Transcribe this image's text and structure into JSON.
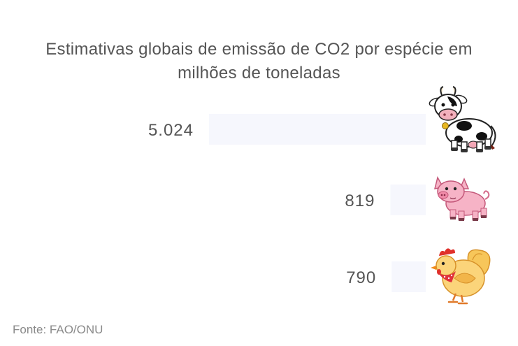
{
  "title_lines": [
    "Estimativas globais de emissão de CO2 por espécie em",
    "milhões de toneladas"
  ],
  "source": "Fonte: FAO/ONU",
  "colors": {
    "bar": "#f6f7fd",
    "text": "#555555",
    "source": "#8a8a8a"
  },
  "chart_data": {
    "type": "bar",
    "orientation": "horizontal",
    "title": "Estimativas globais de emissão de CO2 por espécie em milhões de toneladas",
    "categories": [
      "cow-icon",
      "pig-icon",
      "chicken-icon"
    ],
    "values": [
      5024,
      819,
      790
    ],
    "value_labels": [
      "5.024",
      "819",
      "790"
    ],
    "xlim": [
      0,
      5024
    ],
    "grid": false,
    "legend": "none"
  }
}
